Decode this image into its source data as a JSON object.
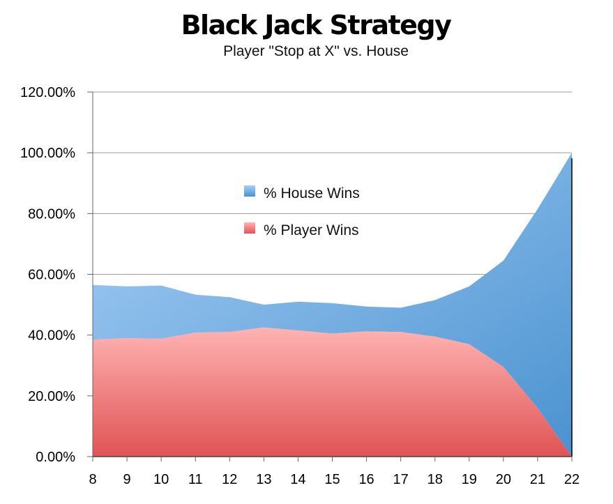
{
  "chart_data": {
    "type": "area",
    "stacked": true,
    "title": "Black Jack Strategy",
    "subtitle": "Player \"Stop at X\" vs. House",
    "xlabel": "",
    "ylabel": "",
    "x": [
      8,
      9,
      10,
      11,
      12,
      13,
      14,
      15,
      16,
      17,
      18,
      19,
      20,
      21,
      22
    ],
    "ylim": [
      0,
      1.2
    ],
    "yticks": [
      0,
      0.2,
      0.4,
      0.6,
      0.8,
      1.0,
      1.2
    ],
    "ytick_labels": [
      "0.00%",
      "20.00%",
      "40.00%",
      "60.00%",
      "80.00%",
      "100.00%",
      "120.00%"
    ],
    "grid": true,
    "legend_position": "upper-center",
    "series": [
      {
        "name": "% Player Wins",
        "color": "#f08080",
        "values": [
          0.385,
          0.39,
          0.388,
          0.408,
          0.41,
          0.425,
          0.415,
          0.405,
          0.412,
          0.41,
          0.395,
          0.37,
          0.295,
          0.16,
          0.0
        ]
      },
      {
        "name": "% House Wins",
        "color": "#6ea6dc",
        "values": [
          0.18,
          0.17,
          0.175,
          0.125,
          0.115,
          0.075,
          0.095,
          0.1,
          0.082,
          0.08,
          0.12,
          0.19,
          0.35,
          0.655,
          1.0
        ]
      }
    ]
  }
}
